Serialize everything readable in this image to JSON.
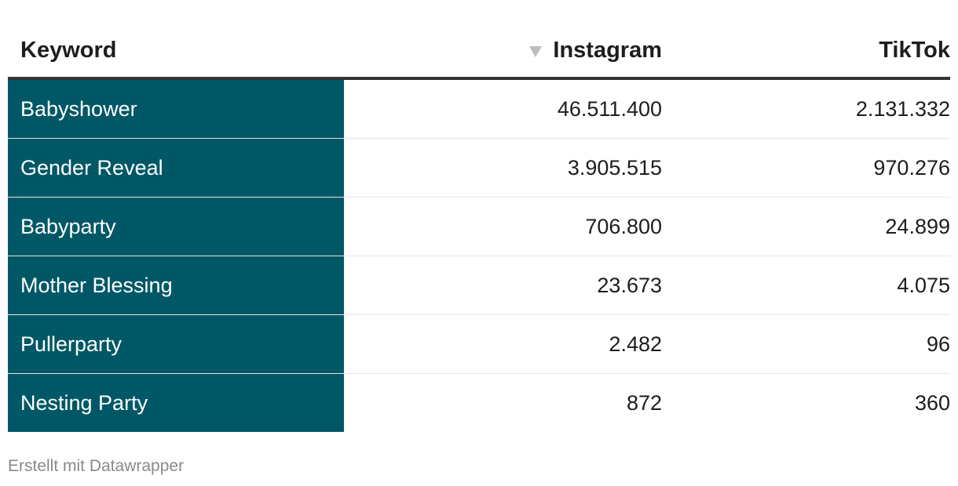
{
  "chart_data": {
    "type": "table",
    "columns": [
      "Keyword",
      "Instagram",
      "TikTok"
    ],
    "sorted_column": "Instagram",
    "sort_direction": "descending",
    "rows": [
      {
        "keyword": "Babyshower",
        "instagram": "46.511.400",
        "tiktok": "2.131.332"
      },
      {
        "keyword": "Gender Reveal",
        "instagram": "3.905.515",
        "tiktok": "970.276"
      },
      {
        "keyword": "Babyparty",
        "instagram": "706.800",
        "tiktok": "24.899"
      },
      {
        "keyword": "Mother Blessing",
        "instagram": "23.673",
        "tiktok": "4.075"
      },
      {
        "keyword": "Pullerparty",
        "instagram": "2.482",
        "tiktok": "96"
      },
      {
        "keyword": "Nesting Party",
        "instagram": "872",
        "tiktok": "360"
      }
    ],
    "keyword_column_color": "#005866"
  },
  "credit": "Erstellt mit Datawrapper"
}
